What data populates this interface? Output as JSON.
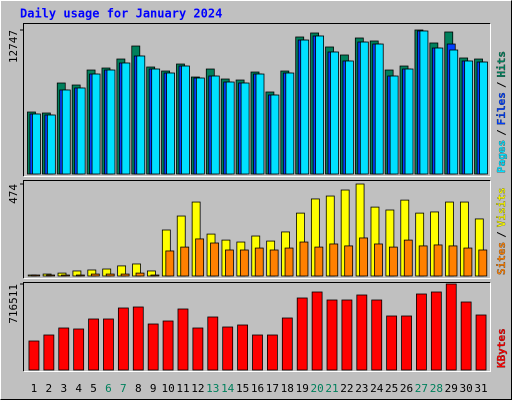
{
  "chart_data": {
    "type": "bar",
    "title": "Daily usage for January 2024",
    "categories": [
      "1",
      "2",
      "3",
      "4",
      "5",
      "6",
      "7",
      "8",
      "9",
      "10",
      "11",
      "12",
      "13",
      "14",
      "15",
      "16",
      "17",
      "18",
      "19",
      "20",
      "21",
      "22",
      "23",
      "24",
      "25",
      "26",
      "27",
      "28",
      "29",
      "30",
      "31"
    ],
    "category_colors": [
      "#000000",
      "#000000",
      "#000000",
      "#000000",
      "#000000",
      "#00805c",
      "#00805c",
      "#000000",
      "#000000",
      "#000000",
      "#000000",
      "#000000",
      "#00805c",
      "#00805c",
      "#000000",
      "#000000",
      "#000000",
      "#000000",
      "#000000",
      "#00805c",
      "#00805c",
      "#000000",
      "#000000",
      "#000000",
      "#000000",
      "#000000",
      "#00805c",
      "#00805c",
      "#000000",
      "#000000",
      "#000000"
    ],
    "legend_separator": "/",
    "panels": [
      {
        "ylim": [
          0,
          12747
        ],
        "yticks": [
          12747
        ],
        "series": [
          {
            "name": "Hits",
            "color": "#00805c",
            "values": [
              5487,
              5399,
              8054,
              7877,
              9204,
              9381,
              10178,
              11328,
              9470,
              9116,
              9735,
              8585,
              9293,
              8408,
              8319,
              9027,
              7259,
              9116,
              12128,
              12482,
              11243,
              10534,
              12039,
              11774,
              9204,
              9558,
              12747,
              11597,
              12570,
              10269,
              10178
            ]
          },
          {
            "name": "Files",
            "color": "#0040ff",
            "values": [
              5311,
              5222,
              7436,
              7613,
              8850,
              9204,
              9825,
              10445,
              9293,
              8939,
              9558,
              8496,
              8673,
              8142,
              8054,
              8850,
              6992,
              8939,
              11859,
              12216,
              10799,
              10003,
              11682,
              11505,
              8673,
              9293,
              12659,
              11151,
              11505,
              10003,
              9912
            ]
          },
          {
            "name": "Pages",
            "color": "#00e0ff",
            "values": [
              5311,
              5222,
              7436,
              7613,
              8850,
              9204,
              9825,
              10445,
              9293,
              8939,
              9558,
              8496,
              8673,
              8142,
              8054,
              8850,
              6992,
              8939,
              11859,
              12216,
              10799,
              10003,
              11682,
              11505,
              8673,
              9293,
              12659,
              11151,
              10976,
              10003,
              9912
            ]
          }
        ]
      },
      {
        "ylim": [
          0,
          474
        ],
        "yticks": [
          474
        ],
        "series": [
          {
            "name": "Visits",
            "color": "#ffff00",
            "values": [
              5,
              10,
              15,
              26,
              31,
              36,
              52,
              62,
              26,
              237,
              309,
              381,
              216,
              185,
              175,
              206,
              180,
              227,
              324,
              397,
              412,
              443,
              474,
              355,
              340,
              391,
              324,
              330,
              381,
              381,
              294
            ]
          },
          {
            "name": "Sites",
            "color": "#ff8000",
            "values": [
              5,
              5,
              5,
              5,
              10,
              10,
              10,
              15,
              5,
              129,
              149,
              191,
              170,
              134,
              134,
              144,
              134,
              144,
              175,
              149,
              165,
              155,
              196,
              165,
              149,
              185,
              155,
              160,
              155,
              144,
              134
            ]
          }
        ]
      },
      {
        "ylim": [
          0,
          716511
        ],
        "yticks": [
          716511
        ],
        "series": [
          {
            "name": "KBytes",
            "color": "#ff0000",
            "values": [
              241628,
              291620,
              349944,
              341612,
              424932,
              424932,
              516584,
              524916,
              383272,
              408268,
              508252,
              349944,
              441596,
              358276,
              374940,
              291620,
              291620,
              433264,
              599904,
              649896,
              583240,
              583240,
              624900,
              583240,
              449928,
              449928,
              633232,
              649896,
              716511,
              566576,
              458260
            ]
          }
        ]
      }
    ]
  }
}
